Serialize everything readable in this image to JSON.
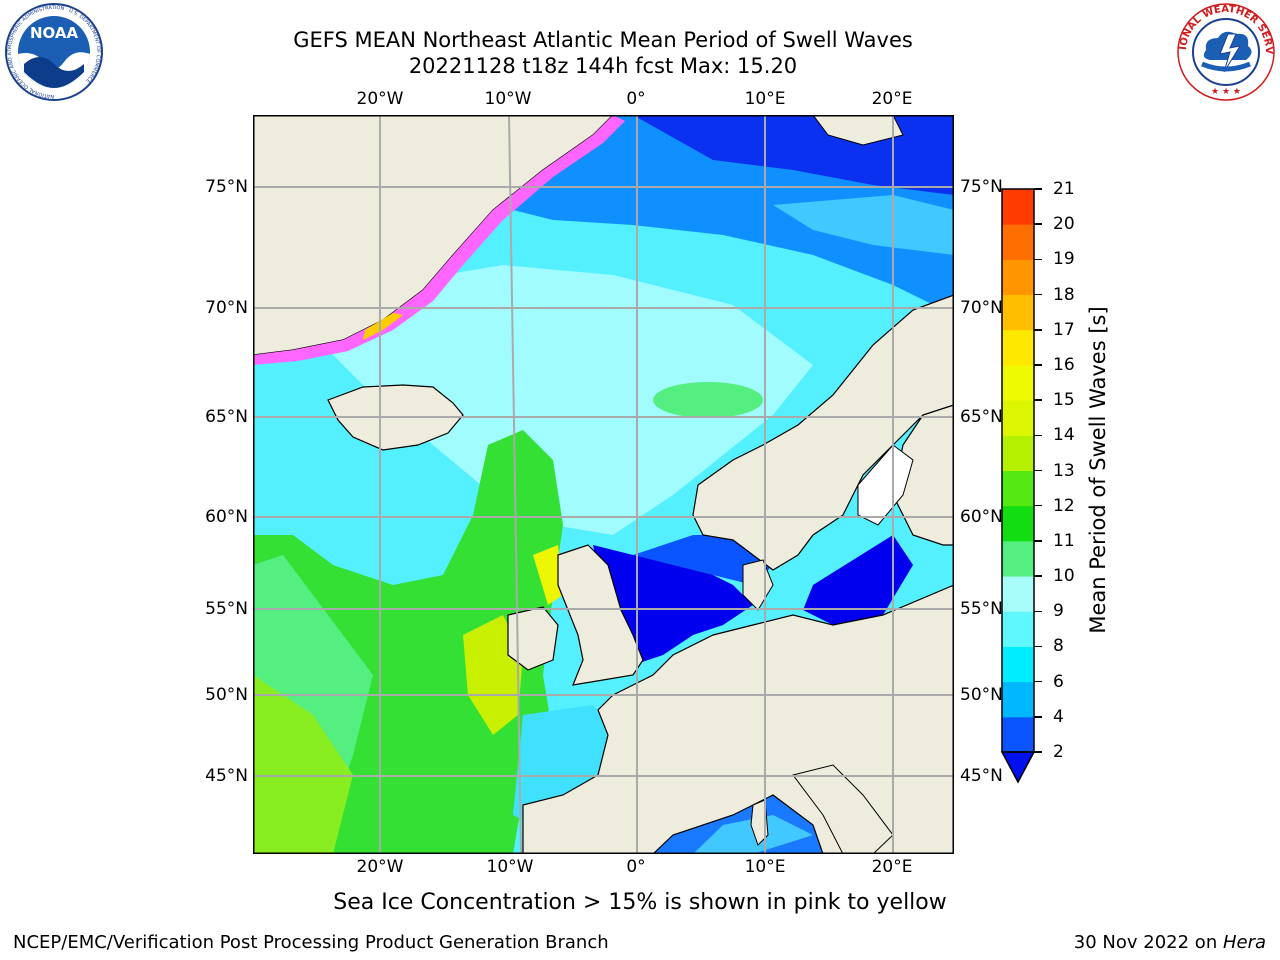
{
  "header": {
    "title_line1": "GEFS MEAN Northeast Atlantic Mean Period of Swell Waves",
    "title_line2": "20221128 t18z 144h fcst   Max: 15.20"
  },
  "logos": {
    "left_text": "NOAA",
    "left_ring_text": "NATIONAL OCEANIC AND ATMOSPHERIC ADMINISTRATION · U.S. DEPARTMENT OF COMMERCE",
    "right_ring_text": "NATIONAL WEATHER SERVICE"
  },
  "map": {
    "lon_ticks": [
      "20°W",
      "10°W",
      "0°",
      "10°E",
      "20°E"
    ],
    "lat_ticks": [
      "75°N",
      "70°N",
      "65°N",
      "60°N",
      "55°N",
      "50°N",
      "45°N"
    ]
  },
  "colorbar": {
    "label": "Mean Period of Swell Waves [s]",
    "ticks": [
      "2",
      "4",
      "6",
      "8",
      "9",
      "10",
      "11",
      "12",
      "13",
      "14",
      "15",
      "16",
      "17",
      "18",
      "19",
      "20",
      "21"
    ],
    "colors": [
      "#0a55ff",
      "#00b8ff",
      "#00ecff",
      "#5ff8ff",
      "#a8fcfa",
      "#55ee80",
      "#11dd11",
      "#55e811",
      "#b4f000",
      "#dcf500",
      "#eefa00",
      "#ffe800",
      "#ffbe00",
      "#ff9600",
      "#ff6e00",
      "#ff3c00"
    ],
    "extend_color": "#0010ee"
  },
  "footer": {
    "note": "Sea Ice Concentration > 15% is shown in pink to yellow",
    "credit": "NCEP/EMC/Verification Post Processing Product Generation Branch",
    "date_prefix": "30 Nov 2022 on ",
    "machine": "Hera"
  },
  "colors": {
    "land": "#eeecdc",
    "deep_blue": "#0000ee",
    "cyan": "#55f0ff",
    "pale_cyan": "#a0fcff",
    "green": "#33e033",
    "yellow_green": "#b0f000",
    "ice_pink": "#ff66ff"
  }
}
